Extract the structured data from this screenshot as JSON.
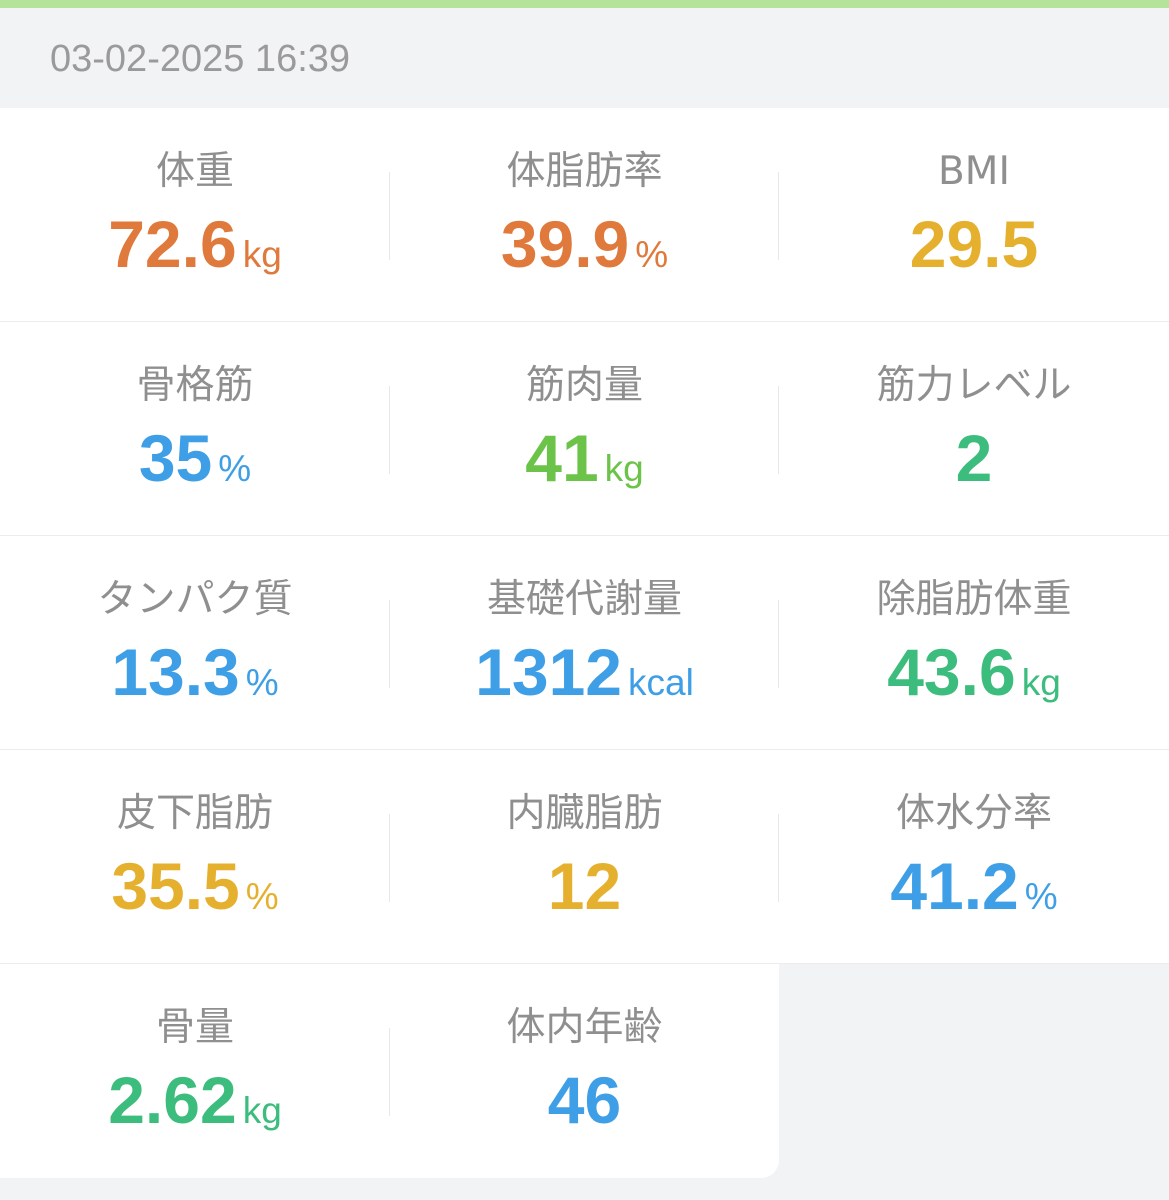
{
  "timestamp": "03-02-2025 16:39",
  "metrics": [
    {
      "label": "体重",
      "value": "72.6",
      "unit": "kg",
      "color": "orange"
    },
    {
      "label": "体脂肪率",
      "value": "39.9",
      "unit": "%",
      "color": "orange"
    },
    {
      "label": "BMI",
      "value": "29.5",
      "unit": "",
      "color": "yellow"
    },
    {
      "label": "骨格筋",
      "value": "35",
      "unit": "%",
      "color": "blue"
    },
    {
      "label": "筋肉量",
      "value": "41",
      "unit": "kg",
      "color": "lgreen"
    },
    {
      "label": "筋力レベル",
      "value": "2",
      "unit": "",
      "color": "green"
    },
    {
      "label": "タンパク質",
      "value": "13.3",
      "unit": "%",
      "color": "blue"
    },
    {
      "label": "基礎代謝量",
      "value": "1312",
      "unit": "kcal",
      "color": "blue"
    },
    {
      "label": "除脂肪体重",
      "value": "43.6",
      "unit": "kg",
      "color": "green"
    },
    {
      "label": "皮下脂肪",
      "value": "35.5",
      "unit": "%",
      "color": "yellow"
    },
    {
      "label": "内臓脂肪",
      "value": "12",
      "unit": "",
      "color": "yellow"
    },
    {
      "label": "体水分率",
      "value": "41.2",
      "unit": "%",
      "color": "blue"
    },
    {
      "label": "骨量",
      "value": "2.62",
      "unit": "kg",
      "color": "green"
    },
    {
      "label": "体内年齢",
      "value": "46",
      "unit": "",
      "color": "blue"
    }
  ]
}
